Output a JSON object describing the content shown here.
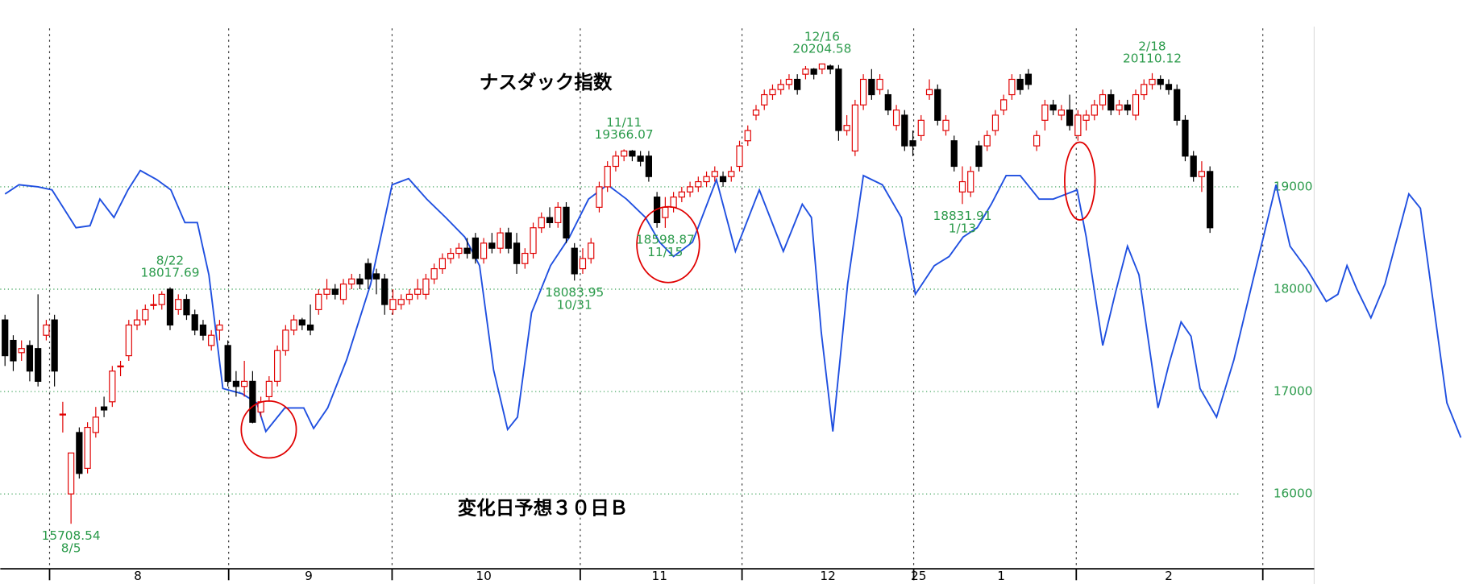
{
  "chart_data": {
    "type": "candlestick",
    "title": "ナスダック指数",
    "subtitle": "変化日予想３０日Ｂ",
    "up_color": "#e00000",
    "down_color": "#000000",
    "open": [
      17700,
      17500,
      17380,
      17450,
      17420,
      17550,
      17700,
      16780,
      16000,
      16600,
      16250,
      16600,
      16850,
      16900,
      17250,
      17350,
      17650,
      17700,
      17850,
      17850,
      18000,
      17800,
      17900,
      17750,
      17650,
      17450,
      17600,
      17450,
      17100,
      17050,
      17100,
      16800,
      16950,
      17100,
      17400,
      17600,
      17700,
      17650,
      17800,
      17950,
      18000,
      17900,
      18050,
      18100,
      18250,
      18150,
      18100,
      17800,
      17850,
      17900,
      17950,
      17950,
      18100,
      18200,
      18300,
      18350,
      18400,
      18500,
      18300,
      18450,
      18400,
      18550,
      18450,
      18250,
      18350,
      18600,
      18700,
      18650,
      18800,
      18400,
      18200,
      18300,
      18800,
      19000,
      19200,
      19300,
      19350,
      19300,
      19300,
      18900,
      18700,
      18800,
      18900,
      18950,
      19000,
      19050,
      19100,
      19100,
      19100,
      19200,
      19450,
      19700,
      19800,
      19900,
      19950,
      20000,
      20050,
      20100,
      20150,
      20150,
      20180,
      20150,
      19550,
      19350,
      19800,
      20050,
      19950,
      19900,
      19600,
      19700,
      19450,
      19500,
      19900,
      19950,
      19550,
      19450,
      18950,
      18950,
      19400,
      19400,
      19550,
      19750,
      19900,
      20050,
      20100,
      19400,
      19650,
      19800,
      19700,
      19750,
      19500,
      19650,
      19700,
      19800,
      19900,
      19750,
      19800,
      19700,
      19900,
      20000,
      20050,
      20000,
      19950,
      19650,
      19300,
      19100,
      19150
    ],
    "high": [
      17750,
      17550,
      17500,
      17500,
      17950,
      17700,
      17750,
      16900,
      16400,
      16650,
      16700,
      16850,
      16950,
      17250,
      17300,
      17700,
      17800,
      17850,
      17950,
      17980,
      18017.69,
      17950,
      17950,
      17800,
      17700,
      17600,
      17700,
      17500,
      17200,
      17300,
      17200,
      16950,
      17150,
      17450,
      17650,
      17750,
      17720,
      17850,
      18000,
      18100,
      18050,
      18100,
      18150,
      18150,
      18300,
      18200,
      18150,
      18000,
      17950,
      18000,
      18100,
      18150,
      18250,
      18350,
      18400,
      18450,
      18500,
      18550,
      18500,
      18550,
      18600,
      18600,
      18550,
      18400,
      18650,
      18750,
      18800,
      18850,
      18850,
      18450,
      18400,
      18500,
      19050,
      19250,
      19350,
      19366.07,
      19360,
      19350,
      19350,
      18950,
      18900,
      18950,
      19000,
      19050,
      19100,
      19150,
      19200,
      19150,
      19200,
      19450,
      19600,
      19800,
      19950,
      20000,
      20050,
      20100,
      20100,
      20180,
      20160,
      20204.58,
      20195,
      20190,
      19700,
      19850,
      20100,
      20150,
      20100,
      19950,
      19800,
      19750,
      19550,
      19700,
      20050,
      20000,
      19700,
      19500,
      19200,
      19200,
      19450,
      19550,
      19750,
      19900,
      20100,
      20100,
      20150,
      19550,
      19850,
      19850,
      19800,
      19900,
      19750,
      19750,
      19850,
      19950,
      19950,
      19850,
      19850,
      19950,
      20050,
      20110.12,
      20090,
      20050,
      20000,
      19700,
      19350,
      19250,
      19200
    ],
    "low": [
      17250,
      17200,
      17300,
      17100,
      17050,
      17500,
      17050,
      16600,
      15708.54,
      16150,
      16200,
      16550,
      16750,
      16850,
      17150,
      17300,
      17600,
      17650,
      17800,
      17800,
      17600,
      17750,
      17700,
      17550,
      17500,
      17400,
      17500,
      17050,
      16950,
      16950,
      16690,
      16750,
      16900,
      17050,
      17350,
      17550,
      17600,
      17550,
      17750,
      17900,
      17900,
      17850,
      18000,
      18000,
      18000,
      17950,
      17750,
      17750,
      17800,
      17850,
      17900,
      17900,
      18050,
      18150,
      18250,
      18300,
      18300,
      18250,
      18250,
      18350,
      18350,
      18350,
      18150,
      18200,
      18300,
      18550,
      18600,
      18600,
      18450,
      18083.95,
      18150,
      18250,
      18750,
      18950,
      19150,
      19250,
      19250,
      19200,
      19050,
      18600,
      18598.87,
      18750,
      18850,
      18900,
      18950,
      19000,
      19050,
      19000,
      19050,
      19150,
      19400,
      19650,
      19750,
      19850,
      19900,
      19950,
      19900,
      20050,
      20050,
      20100,
      20100,
      19450,
      19500,
      19300,
      19750,
      19850,
      19900,
      19700,
      19550,
      19350,
      19300,
      19450,
      19850,
      19600,
      19500,
      19150,
      18831.91,
      18900,
      19150,
      19350,
      19500,
      19700,
      19850,
      19900,
      19950,
      19350,
      19550,
      19700,
      19650,
      19550,
      19450,
      19550,
      19650,
      19750,
      19700,
      19700,
      19700,
      19650,
      19850,
      19950,
      19950,
      19900,
      19600,
      19250,
      19050,
      18950,
      18550
    ],
    "close": [
      17350,
      17300,
      17420,
      17200,
      17100,
      17650,
      17200,
      16780,
      16400,
      16200,
      16650,
      16750,
      16820,
      17200,
      17250,
      17650,
      17700,
      17800,
      17850,
      17950,
      17650,
      17900,
      17750,
      17600,
      17550,
      17550,
      17650,
      17100,
      17050,
      17100,
      16700,
      16900,
      17100,
      17400,
      17600,
      17700,
      17650,
      17600,
      17950,
      18000,
      17950,
      18050,
      18100,
      18050,
      18100,
      18100,
      17850,
      17900,
      17900,
      17950,
      18000,
      18100,
      18200,
      18300,
      18350,
      18400,
      18350,
      18300,
      18450,
      18400,
      18550,
      18400,
      18250,
      18350,
      18600,
      18700,
      18650,
      18800,
      18500,
      18150,
      18300,
      18450,
      19000,
      19200,
      19300,
      19350,
      19300,
      19250,
      19100,
      18650,
      18800,
      18900,
      18950,
      19000,
      19050,
      19100,
      19150,
      19050,
      19150,
      19400,
      19550,
      19750,
      19900,
      19950,
      20000,
      20050,
      19950,
      20150,
      20100,
      20200,
      20150,
      19550,
      19600,
      19800,
      20050,
      19900,
      20050,
      19750,
      19750,
      19400,
      19400,
      19650,
      19950,
      19650,
      19650,
      19200,
      19050,
      19150,
      19200,
      19500,
      19700,
      19850,
      20050,
      19950,
      20000,
      19500,
      19800,
      19750,
      19750,
      19600,
      19700,
      19700,
      19800,
      19900,
      19750,
      19800,
      19750,
      19900,
      20000,
      20050,
      20000,
      19950,
      19650,
      19300,
      19100,
      19150,
      18600
    ],
    "line": {
      "color": "#1f4fe0",
      "x": [
        0,
        1.7,
        4.0,
        5.7,
        8.6,
        10.3,
        11.5,
        13.2,
        14.9,
        16.4,
        18.4,
        20.1,
        21.8,
        23.3,
        24.7,
        26.4,
        28.7,
        30.5,
        31.6,
        33.9,
        36.2,
        37.4,
        39.1,
        41.4,
        44.3,
        46.9,
        48.9,
        51.1,
        53.4,
        55.7,
        57.5,
        59.2,
        60.9,
        62.1,
        63.8,
        66.1,
        68.4,
        70.7,
        73.0,
        75.3,
        77.6,
        79.3,
        81.0,
        83.3,
        86.2,
        88.5,
        91.4,
        94.3,
        96.6,
        97.7,
        98.9,
        100.3,
        102.1,
        104.0,
        106.3,
        108.6,
        110.3,
        112.6,
        114.4,
        116.1,
        117.8,
        119.5,
        121.3,
        123.0,
        125.3,
        127.0,
        129.9,
        131.0,
        133.0,
        134.5,
        136.0,
        137.4,
        139.7,
        141.0,
        142.5,
        143.7,
        144.8,
        146.8,
        148.9,
        151.1,
        154.0,
        155.7,
        157.8,
        160.1,
        161.5,
        162.6,
        163.8,
        165.5,
        167.2,
        170.1,
        171.5,
        174.7,
        176.4
      ],
      "values": [
        18930,
        19020,
        19000,
        18970,
        18600,
        18620,
        18880,
        18700,
        18970,
        19160,
        19070,
        18970,
        18650,
        18650,
        18140,
        17030,
        16980,
        16890,
        16610,
        16840,
        16840,
        16640,
        16840,
        17310,
        18050,
        19020,
        19080,
        18880,
        18700,
        18510,
        18230,
        17210,
        16630,
        16750,
        17770,
        18230,
        18510,
        18880,
        19020,
        18880,
        18700,
        18460,
        18320,
        18460,
        19070,
        18370,
        18970,
        18370,
        18830,
        18700,
        17580,
        16610,
        18050,
        19110,
        19020,
        18700,
        17950,
        18230,
        18320,
        18510,
        18600,
        18830,
        19110,
        19110,
        18880,
        18880,
        18970,
        18510,
        17450,
        17950,
        18420,
        18140,
        16840,
        17260,
        17680,
        17540,
        17030,
        16750,
        17310,
        18050,
        19020,
        18420,
        18190,
        17880,
        17950,
        18230,
        18000,
        17720,
        18050,
        18930,
        18790,
        16890,
        16550
      ]
    },
    "ylim": [
      15120,
      20825
    ],
    "yticks": [
      16000,
      17000,
      18000,
      19000
    ],
    "grid": true,
    "xlim": [
      -0.57,
      177.59
    ],
    "xticks": [
      5.4,
      27.1,
      46.9,
      69.7,
      89.3,
      110.1,
      129.8,
      152.4
    ],
    "month_labels": [
      {
        "value": 16.1,
        "label": "8"
      },
      {
        "value": 36.8,
        "label": "9"
      },
      {
        "value": 58.0,
        "label": "10"
      },
      {
        "value": 79.3,
        "label": "11"
      },
      {
        "value": 99.7,
        "label": "12"
      },
      {
        "value": 110.7,
        "label": "25"
      },
      {
        "value": 120.7,
        "label": "1"
      },
      {
        "value": 141.0,
        "label": "2"
      }
    ],
    "annotations": [
      {
        "date": "8/5",
        "value": 15708.54
      },
      {
        "date": "8/22",
        "value": 18017.69
      },
      {
        "date": "10/31",
        "value": 18083.95
      },
      {
        "date": "11/11",
        "value": 19366.07
      },
      {
        "date": "11/15",
        "value": 18598.87
      },
      {
        "date": "12/16",
        "value": 20204.58
      },
      {
        "date": "1/13",
        "value": 18831.91
      },
      {
        "date": "2/18",
        "value": 20110.12
      }
    ]
  }
}
